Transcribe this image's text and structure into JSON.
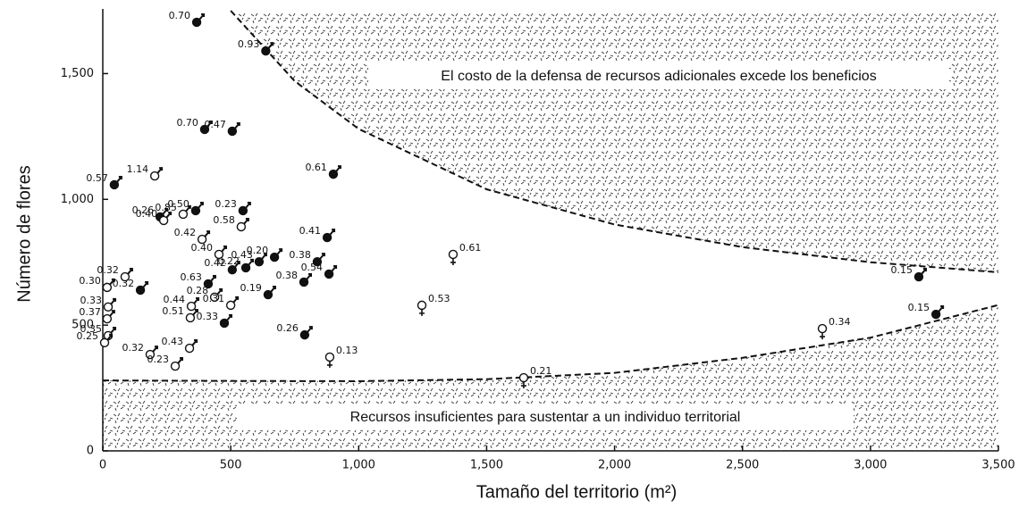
{
  "chart_data": {
    "type": "scatter",
    "xlabel": "Tamaño del territorio (m²)",
    "ylabel": "Número de flores",
    "xlim": [
      0,
      3500
    ],
    "ylim": [
      0,
      1750
    ],
    "xticks": [
      0,
      {
        "value": 500,
        "label": "500"
      },
      {
        "value": 1000,
        "label": "1,000"
      },
      {
        "value": 1500,
        "label": "1,500"
      },
      {
        "value": 2000,
        "label": "2,000"
      },
      {
        "value": 2500,
        "label": "2,500"
      },
      {
        "value": 3000,
        "label": "3,000"
      },
      {
        "value": 3500,
        "label": "3,500"
      }
    ],
    "yticks": [
      0,
      500,
      {
        "value": 1000,
        "label": "1,000"
      },
      {
        "value": 1500,
        "label": "1,500"
      }
    ],
    "series": [
      {
        "color": "#111111",
        "filled": true,
        "symbol": "male",
        "x": [
          367,
          637,
          398,
          506,
          901,
          45,
          224,
          363,
          548,
          877,
          506,
          559,
          611,
          671,
          838,
          884,
          786,
          646,
          412,
          147,
          475,
          789,
          3189,
          3256
        ],
        "values": [
          1704,
          1590,
          1278,
          1271,
          1100,
          1058,
          930,
          955,
          955,
          848,
          720,
          728,
          752,
          770,
          752,
          703,
          671,
          621,
          664,
          639,
          508,
          461,
          692,
          543
        ],
        "labels": [
          "0.70",
          "0.93",
          "0.70",
          "0.47",
          "0.61",
          "0.57",
          "0.26",
          "0.50",
          "0.23",
          "0.41",
          "0.42",
          "0.22",
          "0.43",
          "0.20",
          "0.38",
          "0.54",
          "0.38",
          "0.19",
          "0.63",
          "0.32",
          "0.33",
          "0.26",
          "0.15",
          "0.15"
        ]
      },
      {
        "color": "#111111",
        "filled": false,
        "symbol": "male",
        "x": [
          203,
          314,
          238,
          541,
          388,
          454,
          87,
          437,
          346,
          500,
          342,
          21,
          17,
          21,
          7,
          185,
          339,
          283,
          17
        ],
        "values": [
          1093,
          941,
          916,
          891,
          841,
          781,
          692,
          611,
          575,
          579,
          529,
          572,
          525,
          458,
          430,
          383,
          408,
          337,
          650
        ],
        "labels": [
          "1.14",
          "0.85",
          "0.40",
          "0.58",
          "0.42",
          "0.40",
          "0.32",
          "0.28",
          "0.44",
          "0.31",
          "0.51",
          "0.33",
          "0.37",
          "0.35",
          "0.25",
          "0.32",
          "0.43",
          "0.23",
          "0.30"
        ]
      },
      {
        "color": "#111111",
        "filled": false,
        "symbol": "female",
        "x": [
          1369,
          1247,
          887,
          1645,
          2812
        ],
        "values": [
          781,
          579,
          373,
          291,
          486
        ],
        "labels": [
          "0.61",
          "0.53",
          "0.13",
          "0.21",
          "0.34"
        ]
      }
    ],
    "boundaries": [
      {
        "x": [
          500,
          750,
          1000,
          1500,
          2000,
          2500,
          3000,
          3500
        ],
        "values": [
          1750,
          1470,
          1280,
          1040,
          900,
          810,
          750,
          710
        ],
        "side": "above",
        "annotation": "El costo de la defensa de recursos adicionales excede los beneficios"
      },
      {
        "x": [
          0,
          500,
          1000,
          1500,
          2000,
          2500,
          3000,
          3500
        ],
        "values": [
          280,
          278,
          277,
          285,
          310,
          370,
          450,
          580
        ],
        "side": "below",
        "annotation": "Recursos insuficientes para sustentar a un individuo territorial"
      }
    ]
  }
}
